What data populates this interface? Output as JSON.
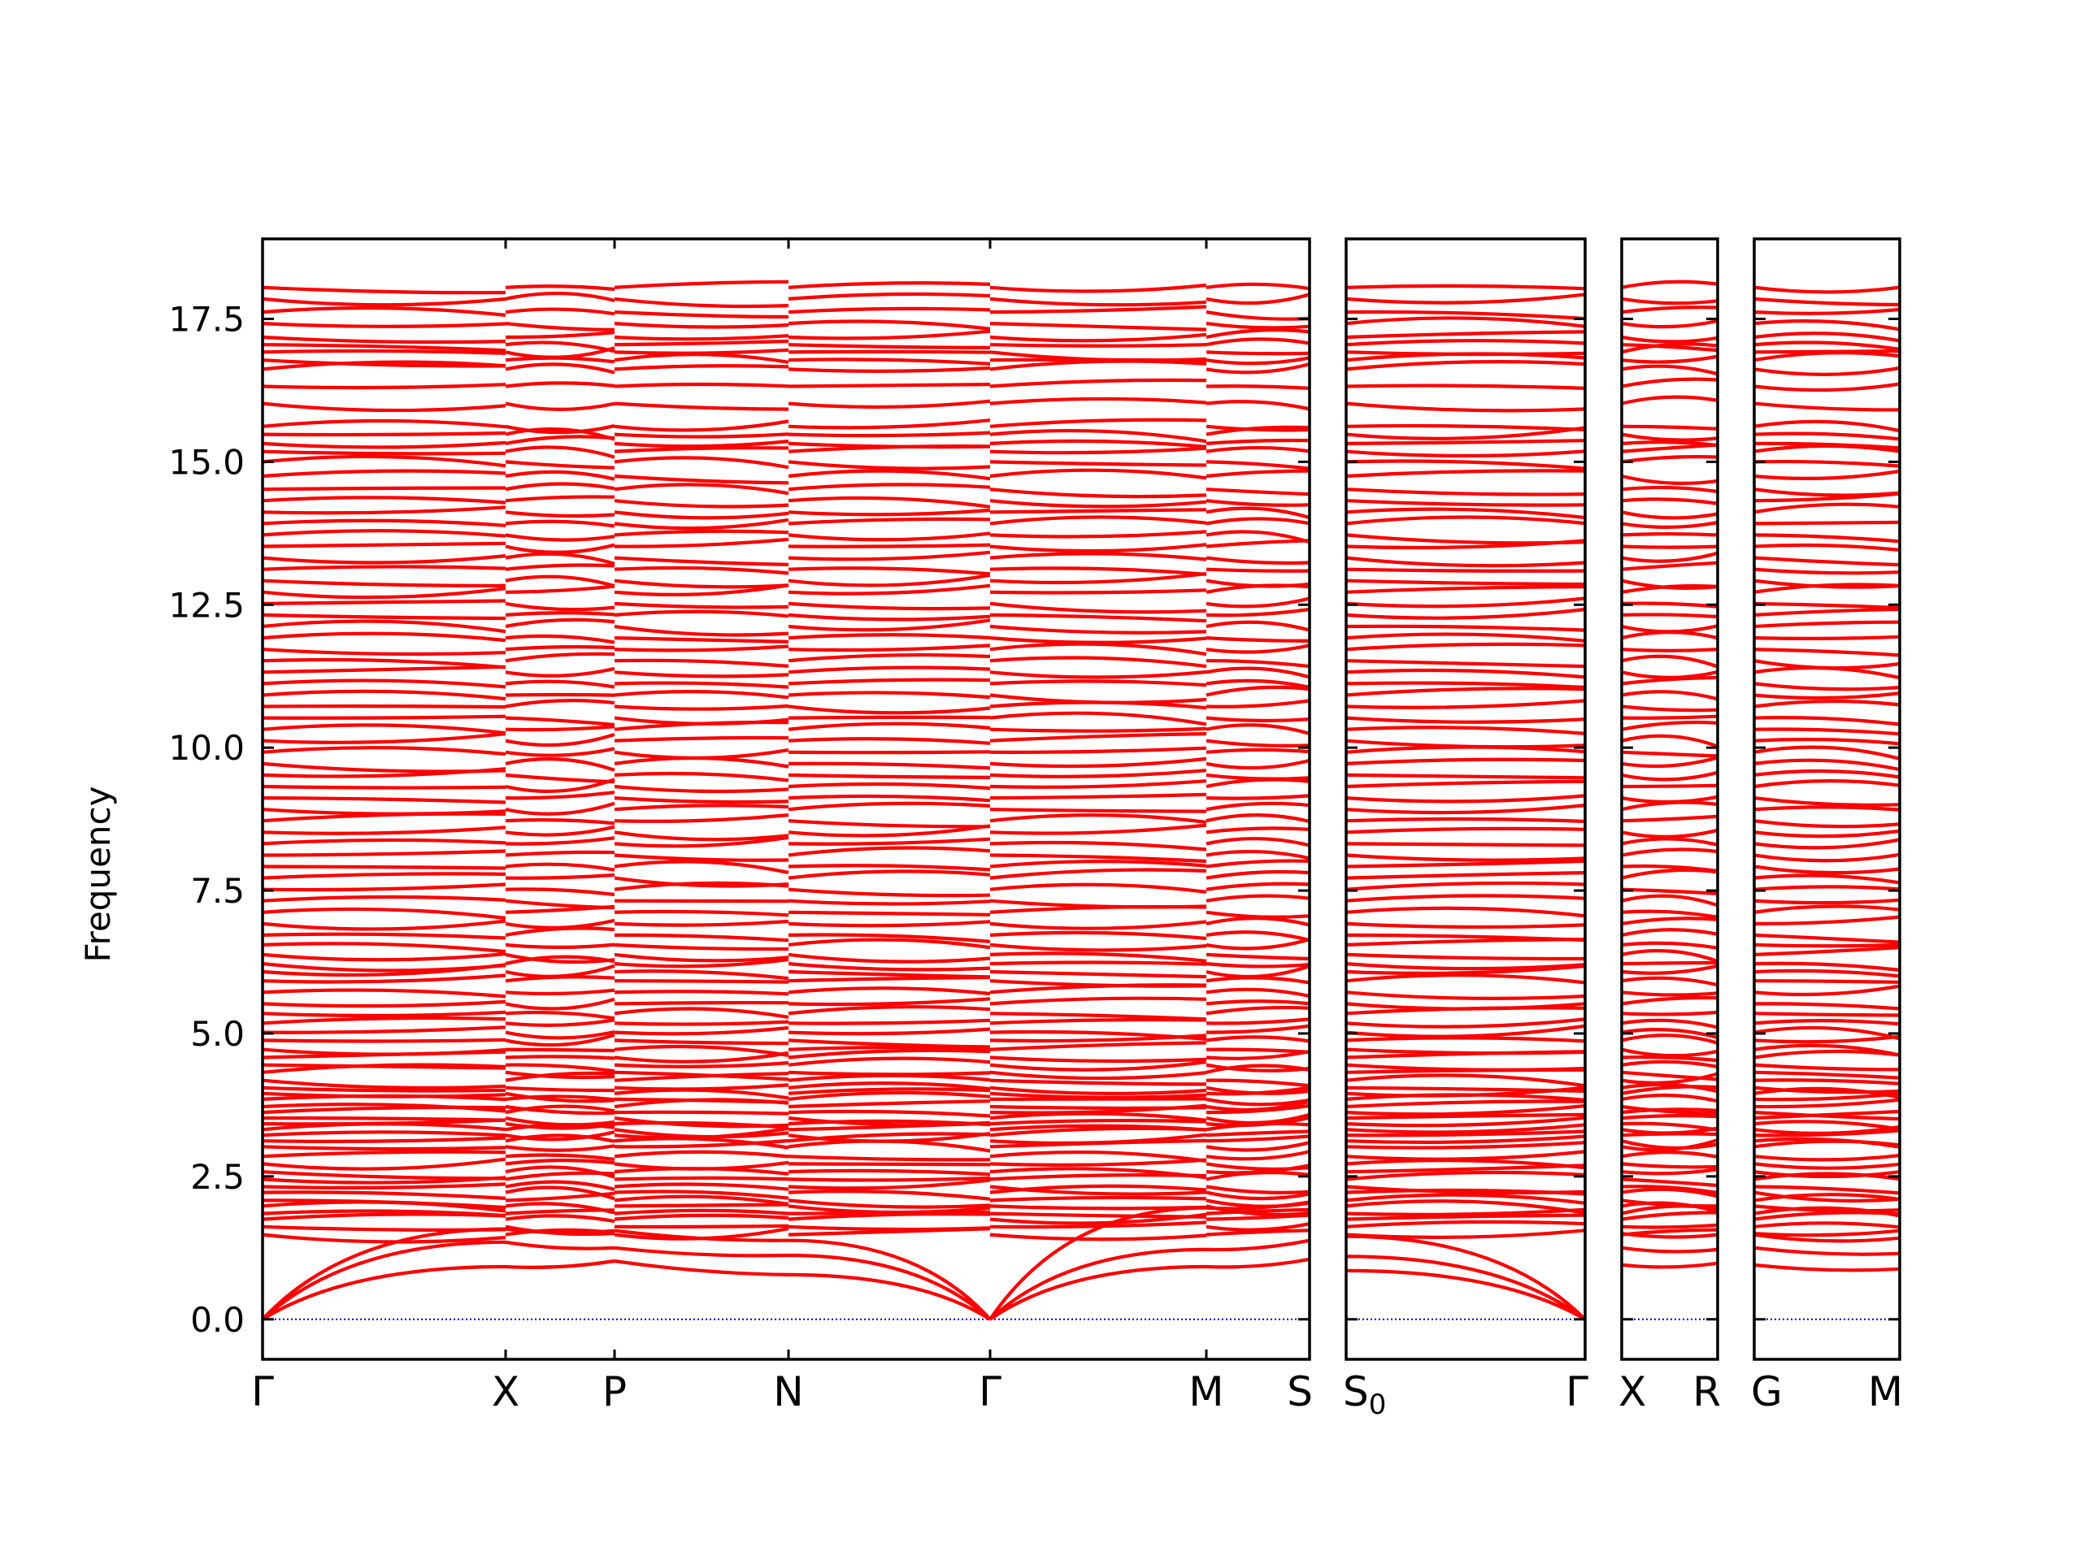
{
  "chart_data": {
    "type": "line",
    "title": "",
    "ylabel": "Frequency",
    "ylim": [
      -0.7,
      18.9
    ],
    "y_ticks": [
      "0.0",
      "2.5",
      "5.0",
      "7.5",
      "10.0",
      "12.5",
      "15.0",
      "17.5"
    ],
    "y_tick_values": [
      0.0,
      2.5,
      5.0,
      7.5,
      10.0,
      12.5,
      15.0,
      17.5
    ],
    "band_color": "#ff0000",
    "zero_line_color": "#0000cc",
    "panels": [
      {
        "labels": [
          "Γ",
          "X",
          "P",
          "N",
          "Γ",
          "M",
          "S"
        ],
        "segments": [
          {
            "from": "Γ",
            "to": "X",
            "acoustic_end": [
              0.92,
              1.35,
              1.58
            ]
          },
          {
            "from": "X",
            "to": "P",
            "acoustic_end": [
              1.02,
              1.25,
              1.55
            ]
          },
          {
            "from": "P",
            "to": "N",
            "acoustic_end": [
              0.78,
              1.12,
              1.38
            ]
          },
          {
            "from": "N",
            "to": "Γ",
            "acoustic_end": [
              0.0,
              0.0,
              0.0
            ]
          },
          {
            "from": "Γ",
            "to": "M",
            "acoustic_end": [
              0.92,
              1.22,
              1.95
            ]
          },
          {
            "from": "M",
            "to": "S",
            "acoustic_end": [
              1.05,
              1.38,
              2.05
            ]
          }
        ]
      },
      {
        "labels": [
          "S0",
          "Γ"
        ],
        "segments": [
          {
            "from": "S0",
            "to": "Γ",
            "acoustic_end": [
              0.0,
              0.0,
              0.0
            ]
          }
        ]
      },
      {
        "labels": [
          "X",
          "R"
        ],
        "segments": [
          {
            "from": "X",
            "to": "R",
            "acoustic_end": [
              0.98,
              1.22,
              1.48
            ]
          }
        ]
      },
      {
        "labels": [
          "G",
          "M"
        ],
        "segments": [
          {
            "from": "G",
            "to": "M",
            "acoustic_end": [
              0.88,
              1.15,
              1.55
            ]
          }
        ]
      }
    ],
    "band_levels": [
      1.48,
      1.62,
      1.75,
      1.85,
      1.98,
      2.08,
      2.22,
      2.32,
      2.45,
      2.58,
      2.72,
      2.85,
      3.02,
      3.12,
      3.22,
      3.32,
      3.42,
      3.52,
      3.62,
      3.72,
      3.85,
      3.95,
      4.05,
      4.18,
      4.32,
      4.45,
      4.58,
      4.72,
      4.88,
      5.02,
      5.18,
      5.35,
      5.52,
      5.72,
      5.92,
      6.08,
      6.22,
      6.38,
      6.55,
      6.72,
      6.92,
      7.12,
      7.32,
      7.52,
      7.72,
      7.92,
      8.12,
      8.32,
      8.52,
      8.72,
      8.92,
      9.12,
      9.32,
      9.52,
      9.72,
      9.92,
      10.12,
      10.32,
      10.52,
      10.72,
      10.92,
      11.12,
      11.32,
      11.52,
      11.72,
      11.92,
      12.12,
      12.32,
      12.52,
      12.72,
      12.92,
      13.12,
      13.32,
      13.52,
      13.72,
      13.92,
      14.12,
      14.32,
      14.52,
      14.75,
      15.0,
      15.18,
      15.32,
      15.48,
      15.62,
      16.02,
      16.32,
      16.62,
      16.78,
      16.92,
      17.05,
      17.18,
      17.42,
      17.62,
      17.85,
      18.05
    ]
  }
}
